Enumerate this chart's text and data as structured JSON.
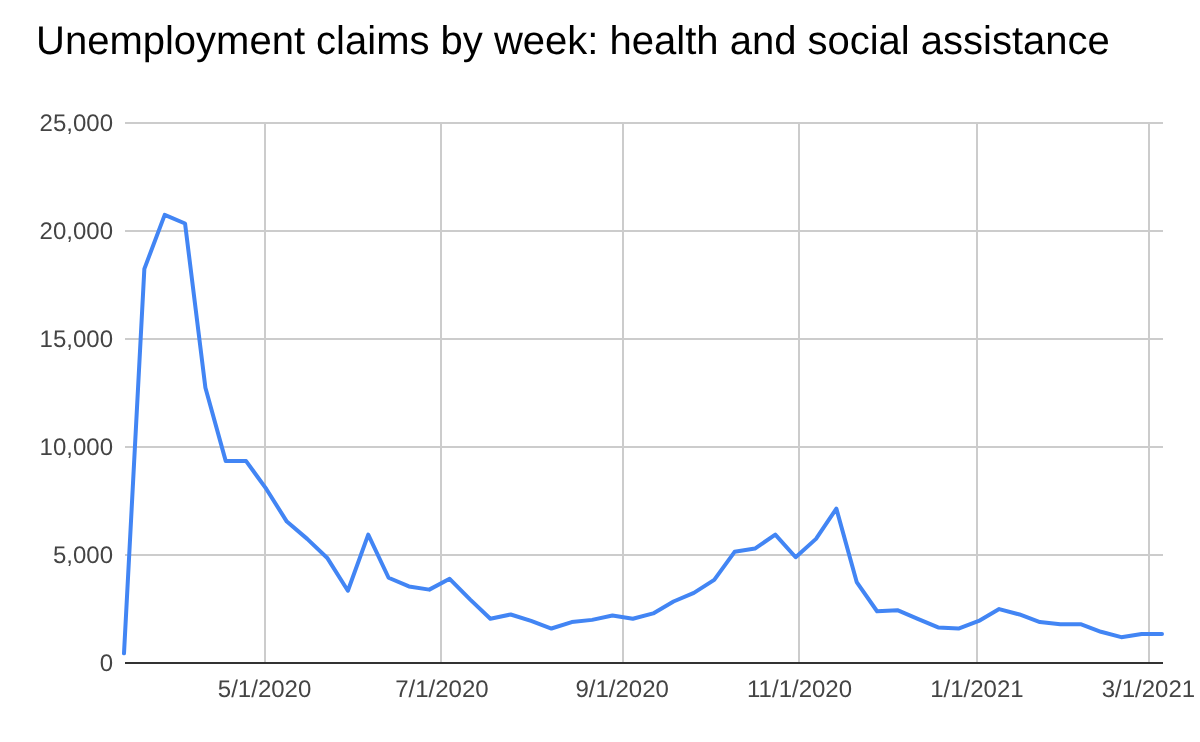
{
  "chart_data": {
    "type": "line",
    "title": "Unemployment claims by week: health and social assistance",
    "x": [
      "2020-03-14",
      "2020-03-21",
      "2020-03-28",
      "2020-04-04",
      "2020-04-11",
      "2020-04-18",
      "2020-04-25",
      "2020-05-02",
      "2020-05-09",
      "2020-05-16",
      "2020-05-23",
      "2020-05-30",
      "2020-06-06",
      "2020-06-13",
      "2020-06-20",
      "2020-06-27",
      "2020-07-04",
      "2020-07-11",
      "2020-07-18",
      "2020-07-25",
      "2020-08-01",
      "2020-08-08",
      "2020-08-15",
      "2020-08-22",
      "2020-08-29",
      "2020-09-05",
      "2020-09-12",
      "2020-09-19",
      "2020-09-26",
      "2020-10-03",
      "2020-10-10",
      "2020-10-17",
      "2020-10-24",
      "2020-10-31",
      "2020-11-07",
      "2020-11-14",
      "2020-11-21",
      "2020-11-28",
      "2020-12-05",
      "2020-12-12",
      "2020-12-19",
      "2020-12-26",
      "2021-01-02",
      "2021-01-09",
      "2021-01-16",
      "2021-01-23",
      "2021-01-30",
      "2021-02-06",
      "2021-02-13",
      "2021-02-20",
      "2021-02-27",
      "2021-03-06"
    ],
    "series": [
      {
        "color": "#4285f4",
        "values": [
          400,
          18200,
          20700,
          20300,
          12700,
          9300,
          9300,
          8000,
          6500,
          5700,
          4800,
          3300,
          5900,
          3900,
          3500,
          3350,
          3850,
          2900,
          2000,
          2200,
          1900,
          1550,
          1850,
          1950,
          2150,
          2000,
          2250,
          2800,
          3200,
          3800,
          5100,
          5250,
          5900,
          4850,
          5700,
          7100,
          3700,
          2350,
          2400,
          2000,
          1600,
          1550,
          1900,
          2450,
          2200,
          1850,
          1750,
          1750,
          1400,
          1150,
          1300,
          1300
        ]
      }
    ],
    "xlim": [
      "2020-03-14",
      "2021-03-06"
    ],
    "xticks": [
      {
        "value": "2020-05-01",
        "label": "5/1/2020"
      },
      {
        "value": "2020-07-01",
        "label": "7/1/2020"
      },
      {
        "value": "2020-09-01",
        "label": "9/1/2020"
      },
      {
        "value": "2020-11-01",
        "label": "11/1/2020"
      },
      {
        "value": "2021-01-01",
        "label": "1/1/2021"
      },
      {
        "value": "2021-03-01",
        "label": "3/1/2021"
      }
    ],
    "ylim": [
      0,
      25000
    ],
    "yticks": [
      {
        "value": 0,
        "label": "0"
      },
      {
        "value": 5000,
        "label": "5,000"
      },
      {
        "value": 10000,
        "label": "10,000"
      },
      {
        "value": 15000,
        "label": "15,000"
      },
      {
        "value": 20000,
        "label": "20,000"
      },
      {
        "value": 25000,
        "label": "25,000"
      }
    ],
    "grid": true,
    "marker": "none",
    "line_style": "solid"
  }
}
